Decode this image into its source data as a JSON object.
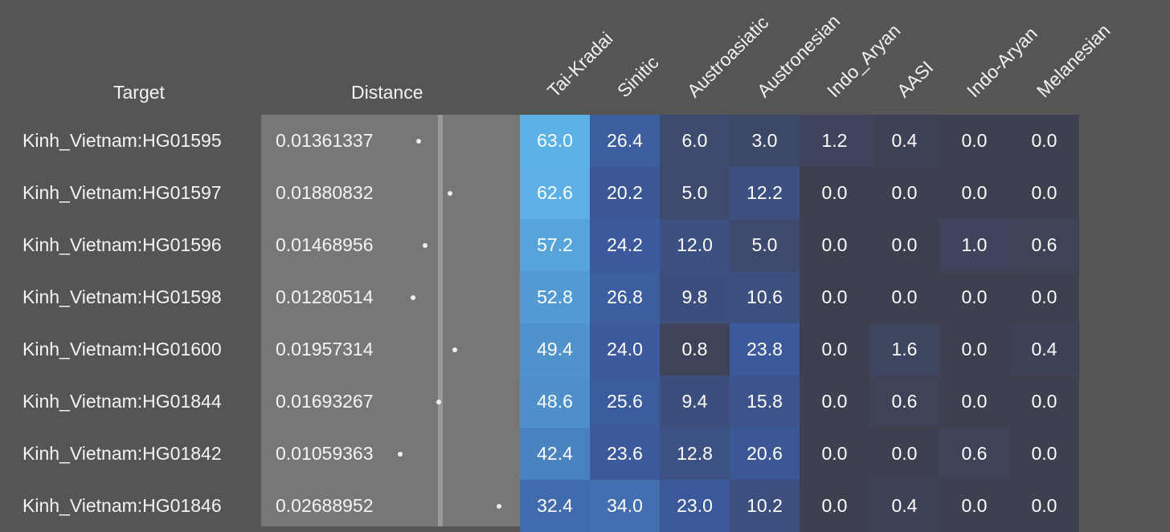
{
  "headers": {
    "target": "Target",
    "distance": "Distance"
  },
  "chart_data": {
    "type": "heatmap",
    "columns": [
      "Tai-Kradai",
      "Sinitic",
      "Austroasiatic",
      "Austronesian",
      "Indo_Aryan",
      "AASI",
      "Indo-Aryan",
      "Melanesian"
    ],
    "rows": [
      {
        "target": "Kinh_Vietnam:HG01595",
        "distance": "0.01361337",
        "values": [
          "63.0",
          "26.4",
          "6.0",
          "3.0",
          "1.2",
          "0.4",
          "0.0",
          "0.0"
        ]
      },
      {
        "target": "Kinh_Vietnam:HG01597",
        "distance": "0.01880832",
        "values": [
          "62.6",
          "20.2",
          "5.0",
          "12.2",
          "0.0",
          "0.0",
          "0.0",
          "0.0"
        ]
      },
      {
        "target": "Kinh_Vietnam:HG01596",
        "distance": "0.01468956",
        "values": [
          "57.2",
          "24.2",
          "12.0",
          "5.0",
          "0.0",
          "0.0",
          "1.0",
          "0.6"
        ]
      },
      {
        "target": "Kinh_Vietnam:HG01598",
        "distance": "0.01280514",
        "values": [
          "52.8",
          "26.8",
          "9.8",
          "10.6",
          "0.0",
          "0.0",
          "0.0",
          "0.0"
        ]
      },
      {
        "target": "Kinh_Vietnam:HG01600",
        "distance": "0.01957314",
        "values": [
          "49.4",
          "24.0",
          "0.8",
          "23.8",
          "0.0",
          "1.6",
          "0.0",
          "0.4"
        ]
      },
      {
        "target": "Kinh_Vietnam:HG01844",
        "distance": "0.01693267",
        "values": [
          "48.6",
          "25.6",
          "9.4",
          "15.8",
          "0.0",
          "0.6",
          "0.0",
          "0.0"
        ]
      },
      {
        "target": "Kinh_Vietnam:HG01842",
        "distance": "0.01059363",
        "values": [
          "42.4",
          "23.6",
          "12.8",
          "20.6",
          "0.0",
          "0.0",
          "0.6",
          "0.0"
        ]
      },
      {
        "target": "Kinh_Vietnam:HG01846",
        "distance": "0.02688952",
        "values": [
          "32.4",
          "34.0",
          "23.0",
          "10.2",
          "0.0",
          "0.4",
          "0.0",
          "0.0"
        ]
      }
    ],
    "color_scale": {
      "low": "#3e4050",
      "mid": "#3b5a9e",
      "high": "#5cb1e6"
    }
  }
}
